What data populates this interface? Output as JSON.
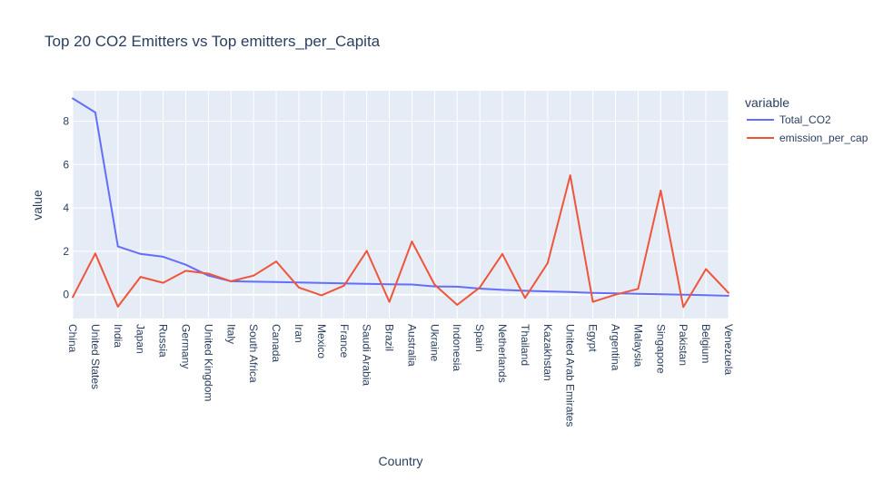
{
  "chart_data": {
    "type": "line",
    "title": "Top 20 CO2 Emitters vs Top emitters_per_Capita",
    "xlabel": "Country",
    "ylabel": "value",
    "legend_title": "variable",
    "legend_position": "top-right",
    "grid": true,
    "ylim": [
      -1.1,
      9.4
    ],
    "y_ticks": [
      0,
      2,
      4,
      6,
      8
    ],
    "categories": [
      "China",
      "United States",
      "India",
      "Japan",
      "Russia",
      "Germany",
      "United Kingdom",
      "Italy",
      "South Africa",
      "Canada",
      "Iran",
      "Mexico",
      "France",
      "Saudi Arabia",
      "Brazil",
      "Australia",
      "Ukraine",
      "Indonesia",
      "Spain",
      "Netherlands",
      "Thailand",
      "Kazakhstan",
      "United Arab Emirates",
      "Egypt",
      "Argentina",
      "Malaysia",
      "Singapore",
      "Pakistan",
      "Belgium",
      "Venezuela"
    ],
    "series": [
      {
        "name": "Total_CO2",
        "color": "#636efa",
        "values": [
          9.05,
          8.4,
          2.22,
          1.88,
          1.75,
          1.38,
          0.88,
          0.62,
          0.6,
          0.58,
          0.56,
          0.54,
          0.52,
          0.5,
          0.48,
          0.47,
          0.38,
          0.37,
          0.28,
          0.22,
          0.18,
          0.15,
          0.12,
          0.08,
          0.06,
          0.04,
          0.02,
          0.0,
          -0.02,
          -0.05
        ]
      },
      {
        "name": "emission_per_cap",
        "color": "#ef553b",
        "values": [
          -0.12,
          1.9,
          -0.55,
          0.82,
          0.55,
          1.1,
          0.97,
          0.62,
          0.88,
          1.53,
          0.33,
          -0.03,
          0.42,
          2.02,
          -0.33,
          2.45,
          0.47,
          -0.47,
          0.33,
          1.88,
          -0.15,
          1.45,
          5.5,
          -0.33,
          0.0,
          0.27,
          4.8,
          -0.57,
          1.18,
          0.08
        ]
      }
    ]
  }
}
